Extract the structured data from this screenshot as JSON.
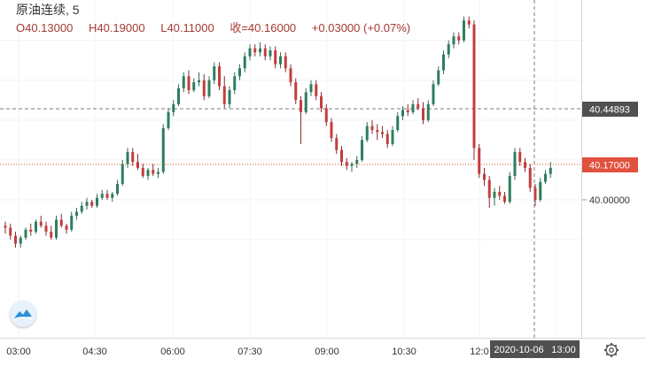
{
  "header": {
    "symbol": "原油连续",
    "interval": "5",
    "separator": ",",
    "open": "O40.13000",
    "high": "H40.19000",
    "low": "L40.11000",
    "close": "收=40.16000",
    "change": "+0.03000 (+0.07%)"
  },
  "price_labels": {
    "crosshair": "40.44893",
    "last": "40.17000",
    "tick": "40.00000"
  },
  "time_axis": {
    "ticks": [
      "03:00",
      "04:30",
      "06:00",
      "07:30",
      "09:00",
      "10:30",
      "12:0"
    ],
    "cursor_label": "2020-10-06",
    "extra_label": "13:00"
  },
  "colors": {
    "up": "#26a69a",
    "down": "#ef5350",
    "up_body": "#2e7d5f",
    "down_body": "#c43d3d",
    "last_price": "#e0513e",
    "crosshair_label": "#505050"
  },
  "icons": {
    "logo": "tradingview-wave-icon",
    "settings": "gear-icon"
  },
  "chart_data": {
    "type": "candlestick",
    "title": "原油连续, 5",
    "xlabel": "",
    "ylabel": "",
    "y_ticks": [
      40.0
    ],
    "crosshair_price": 40.44893,
    "last_price": 40.17,
    "ohlc": [
      [
        39.87,
        39.89,
        39.83,
        39.86
      ],
      [
        39.86,
        39.88,
        39.8,
        39.82
      ],
      [
        39.82,
        39.84,
        39.76,
        39.78
      ],
      [
        39.78,
        39.82,
        39.76,
        39.81
      ],
      [
        39.81,
        39.86,
        39.8,
        39.85
      ],
      [
        39.85,
        39.88,
        39.82,
        39.84
      ],
      [
        39.84,
        39.9,
        39.83,
        39.89
      ],
      [
        39.89,
        39.92,
        39.86,
        39.87
      ],
      [
        39.87,
        39.89,
        39.82,
        39.84
      ],
      [
        39.84,
        39.87,
        39.8,
        39.81
      ],
      [
        39.81,
        39.92,
        39.8,
        39.9
      ],
      [
        39.9,
        39.93,
        39.86,
        39.87
      ],
      [
        39.87,
        39.88,
        39.83,
        39.85
      ],
      [
        39.85,
        39.94,
        39.84,
        39.92
      ],
      [
        39.92,
        39.96,
        39.9,
        39.94
      ],
      [
        39.94,
        39.99,
        39.93,
        39.97
      ],
      [
        39.97,
        40.01,
        39.95,
        39.99
      ],
      [
        39.99,
        40.0,
        39.96,
        39.97
      ],
      [
        39.97,
        40.03,
        39.96,
        40.01
      ],
      [
        40.01,
        40.05,
        40.0,
        40.03
      ],
      [
        40.03,
        40.05,
        40.0,
        40.01
      ],
      [
        40.01,
        40.04,
        39.99,
        40.03
      ],
      [
        40.03,
        40.1,
        40.02,
        40.08
      ],
      [
        40.08,
        40.2,
        40.07,
        40.18
      ],
      [
        40.18,
        40.26,
        40.16,
        40.24
      ],
      [
        40.24,
        40.26,
        40.17,
        40.19
      ],
      [
        40.19,
        40.23,
        40.15,
        40.16
      ],
      [
        40.16,
        40.18,
        40.11,
        40.12
      ],
      [
        40.12,
        40.16,
        40.1,
        40.15
      ],
      [
        40.15,
        40.18,
        40.12,
        40.13
      ],
      [
        40.13,
        40.16,
        40.11,
        40.14
      ],
      [
        40.14,
        40.38,
        40.13,
        40.36
      ],
      [
        40.36,
        40.46,
        40.35,
        40.44
      ],
      [
        40.44,
        40.5,
        40.42,
        40.48
      ],
      [
        40.48,
        40.58,
        40.47,
        40.56
      ],
      [
        40.56,
        40.64,
        40.54,
        40.62
      ],
      [
        40.62,
        40.65,
        40.53,
        40.55
      ],
      [
        40.55,
        40.61,
        40.54,
        40.59
      ],
      [
        40.59,
        40.64,
        40.57,
        40.6
      ],
      [
        40.6,
        40.63,
        40.5,
        40.52
      ],
      [
        40.52,
        40.62,
        40.51,
        40.6
      ],
      [
        40.6,
        40.69,
        40.58,
        40.67
      ],
      [
        40.67,
        40.69,
        40.55,
        40.57
      ],
      [
        40.57,
        40.62,
        40.46,
        40.48
      ],
      [
        40.48,
        40.57,
        40.46,
        40.55
      ],
      [
        40.55,
        40.64,
        40.53,
        40.62
      ],
      [
        40.62,
        40.68,
        40.6,
        40.66
      ],
      [
        40.66,
        40.74,
        40.64,
        40.72
      ],
      [
        40.72,
        40.78,
        40.7,
        40.76
      ],
      [
        40.76,
        40.78,
        40.72,
        40.74
      ],
      [
        40.74,
        40.79,
        40.72,
        40.76
      ],
      [
        40.76,
        40.78,
        40.7,
        40.72
      ],
      [
        40.72,
        40.77,
        40.7,
        40.75
      ],
      [
        40.75,
        40.77,
        40.66,
        40.68
      ],
      [
        40.68,
        40.74,
        40.66,
        40.72
      ],
      [
        40.72,
        40.74,
        40.64,
        40.66
      ],
      [
        40.66,
        40.68,
        40.57,
        40.59
      ],
      [
        40.59,
        40.61,
        40.48,
        40.5
      ],
      [
        40.5,
        40.52,
        40.28,
        40.44
      ],
      [
        40.44,
        40.56,
        40.43,
        40.54
      ],
      [
        40.54,
        40.6,
        40.52,
        40.58
      ],
      [
        40.58,
        40.6,
        40.5,
        40.52
      ],
      [
        40.52,
        40.54,
        40.44,
        40.46
      ],
      [
        40.46,
        40.48,
        40.37,
        40.39
      ],
      [
        40.39,
        40.41,
        40.29,
        40.31
      ],
      [
        40.31,
        40.33,
        40.23,
        40.25
      ],
      [
        40.25,
        40.27,
        40.17,
        40.19
      ],
      [
        40.19,
        40.21,
        40.15,
        40.17
      ],
      [
        40.17,
        40.19,
        40.14,
        40.18
      ],
      [
        40.18,
        40.22,
        40.16,
        40.2
      ],
      [
        40.2,
        40.32,
        40.19,
        40.3
      ],
      [
        40.3,
        40.39,
        40.29,
        40.37
      ],
      [
        40.37,
        40.4,
        40.33,
        40.35
      ],
      [
        40.35,
        40.38,
        40.3,
        40.34
      ],
      [
        40.34,
        40.37,
        40.31,
        40.33
      ],
      [
        40.33,
        40.35,
        40.26,
        40.28
      ],
      [
        40.28,
        40.37,
        40.27,
        40.35
      ],
      [
        40.35,
        40.44,
        40.34,
        40.42
      ],
      [
        40.42,
        40.47,
        40.4,
        40.45
      ],
      [
        40.45,
        40.48,
        40.42,
        40.44
      ],
      [
        40.44,
        40.5,
        40.43,
        40.48
      ],
      [
        40.48,
        40.51,
        40.45,
        40.46
      ],
      [
        40.46,
        40.49,
        40.38,
        40.4
      ],
      [
        40.4,
        40.5,
        40.39,
        40.48
      ],
      [
        40.48,
        40.6,
        40.47,
        40.58
      ],
      [
        40.58,
        40.67,
        40.57,
        40.65
      ],
      [
        40.65,
        40.75,
        40.63,
        40.73
      ],
      [
        40.73,
        40.8,
        40.71,
        40.78
      ],
      [
        40.78,
        40.84,
        40.76,
        40.82
      ],
      [
        40.82,
        40.84,
        40.78,
        40.8
      ],
      [
        40.8,
        40.92,
        40.79,
        40.9
      ],
      [
        40.9,
        40.92,
        40.86,
        40.88
      ],
      [
        40.88,
        40.9,
        40.2,
        40.26
      ],
      [
        40.26,
        40.28,
        40.11,
        40.13
      ],
      [
        40.13,
        40.16,
        40.07,
        40.1
      ],
      [
        40.1,
        40.12,
        39.96,
        40.01
      ],
      [
        40.01,
        40.06,
        39.97,
        40.04
      ],
      [
        40.04,
        40.07,
        40.0,
        40.02
      ],
      [
        40.02,
        40.04,
        39.98,
        39.99
      ],
      [
        39.99,
        40.14,
        39.98,
        40.12
      ],
      [
        40.12,
        40.26,
        40.1,
        40.24
      ],
      [
        40.24,
        40.26,
        40.17,
        40.19
      ],
      [
        40.19,
        40.21,
        40.14,
        40.16
      ],
      [
        40.16,
        40.18,
        40.04,
        40.06
      ],
      [
        40.06,
        40.08,
        39.97,
        40.0
      ],
      [
        40.0,
        40.11,
        39.99,
        40.09
      ],
      [
        40.09,
        40.15,
        40.08,
        40.13
      ],
      [
        40.13,
        40.19,
        40.11,
        40.16
      ]
    ]
  }
}
